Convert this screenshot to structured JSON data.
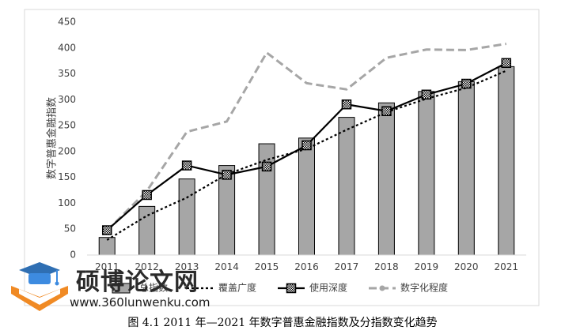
{
  "chart_data": {
    "type": "bar",
    "title": "",
    "ylabel": "数字普惠金融指数",
    "xlabel": "",
    "ylim": [
      0,
      450
    ],
    "yticks": [
      0,
      50,
      100,
      150,
      200,
      250,
      300,
      350,
      400,
      450
    ],
    "categories": [
      "2011",
      "2012",
      "2013",
      "2014",
      "2015",
      "2016",
      "2017",
      "2018",
      "2019",
      "2020",
      "2021"
    ],
    "series": [
      {
        "name": "总指数",
        "kind": "bar",
        "color": "#a6a6a6",
        "values": [
          34,
          94,
          147,
          173,
          215,
          226,
          266,
          294,
          316,
          335,
          364
        ]
      },
      {
        "name": "覆盖广度",
        "kind": "dotted-line",
        "color": "#000000",
        "values": [
          29,
          76,
          111,
          156,
          184,
          205,
          242,
          276,
          302,
          323,
          356
        ]
      },
      {
        "name": "使用深度",
        "kind": "line-marker",
        "color": "#000000",
        "values": [
          48,
          116,
          173,
          155,
          171,
          212,
          291,
          278,
          310,
          331,
          371
        ]
      },
      {
        "name": "数字化程度",
        "kind": "dashed-line",
        "color": "#a6a6a6",
        "values": [
          47,
          124,
          238,
          258,
          391,
          332,
          320,
          381,
          397,
          396,
          408
        ]
      }
    ],
    "grid": false,
    "legend": "bottom"
  },
  "watermark": {
    "title": "硕博论文网",
    "url": "www.360lunwenku.com"
  },
  "caption": "图 4.1 2011 年—2021 年数字普惠金融指数及分指数变化趋势"
}
